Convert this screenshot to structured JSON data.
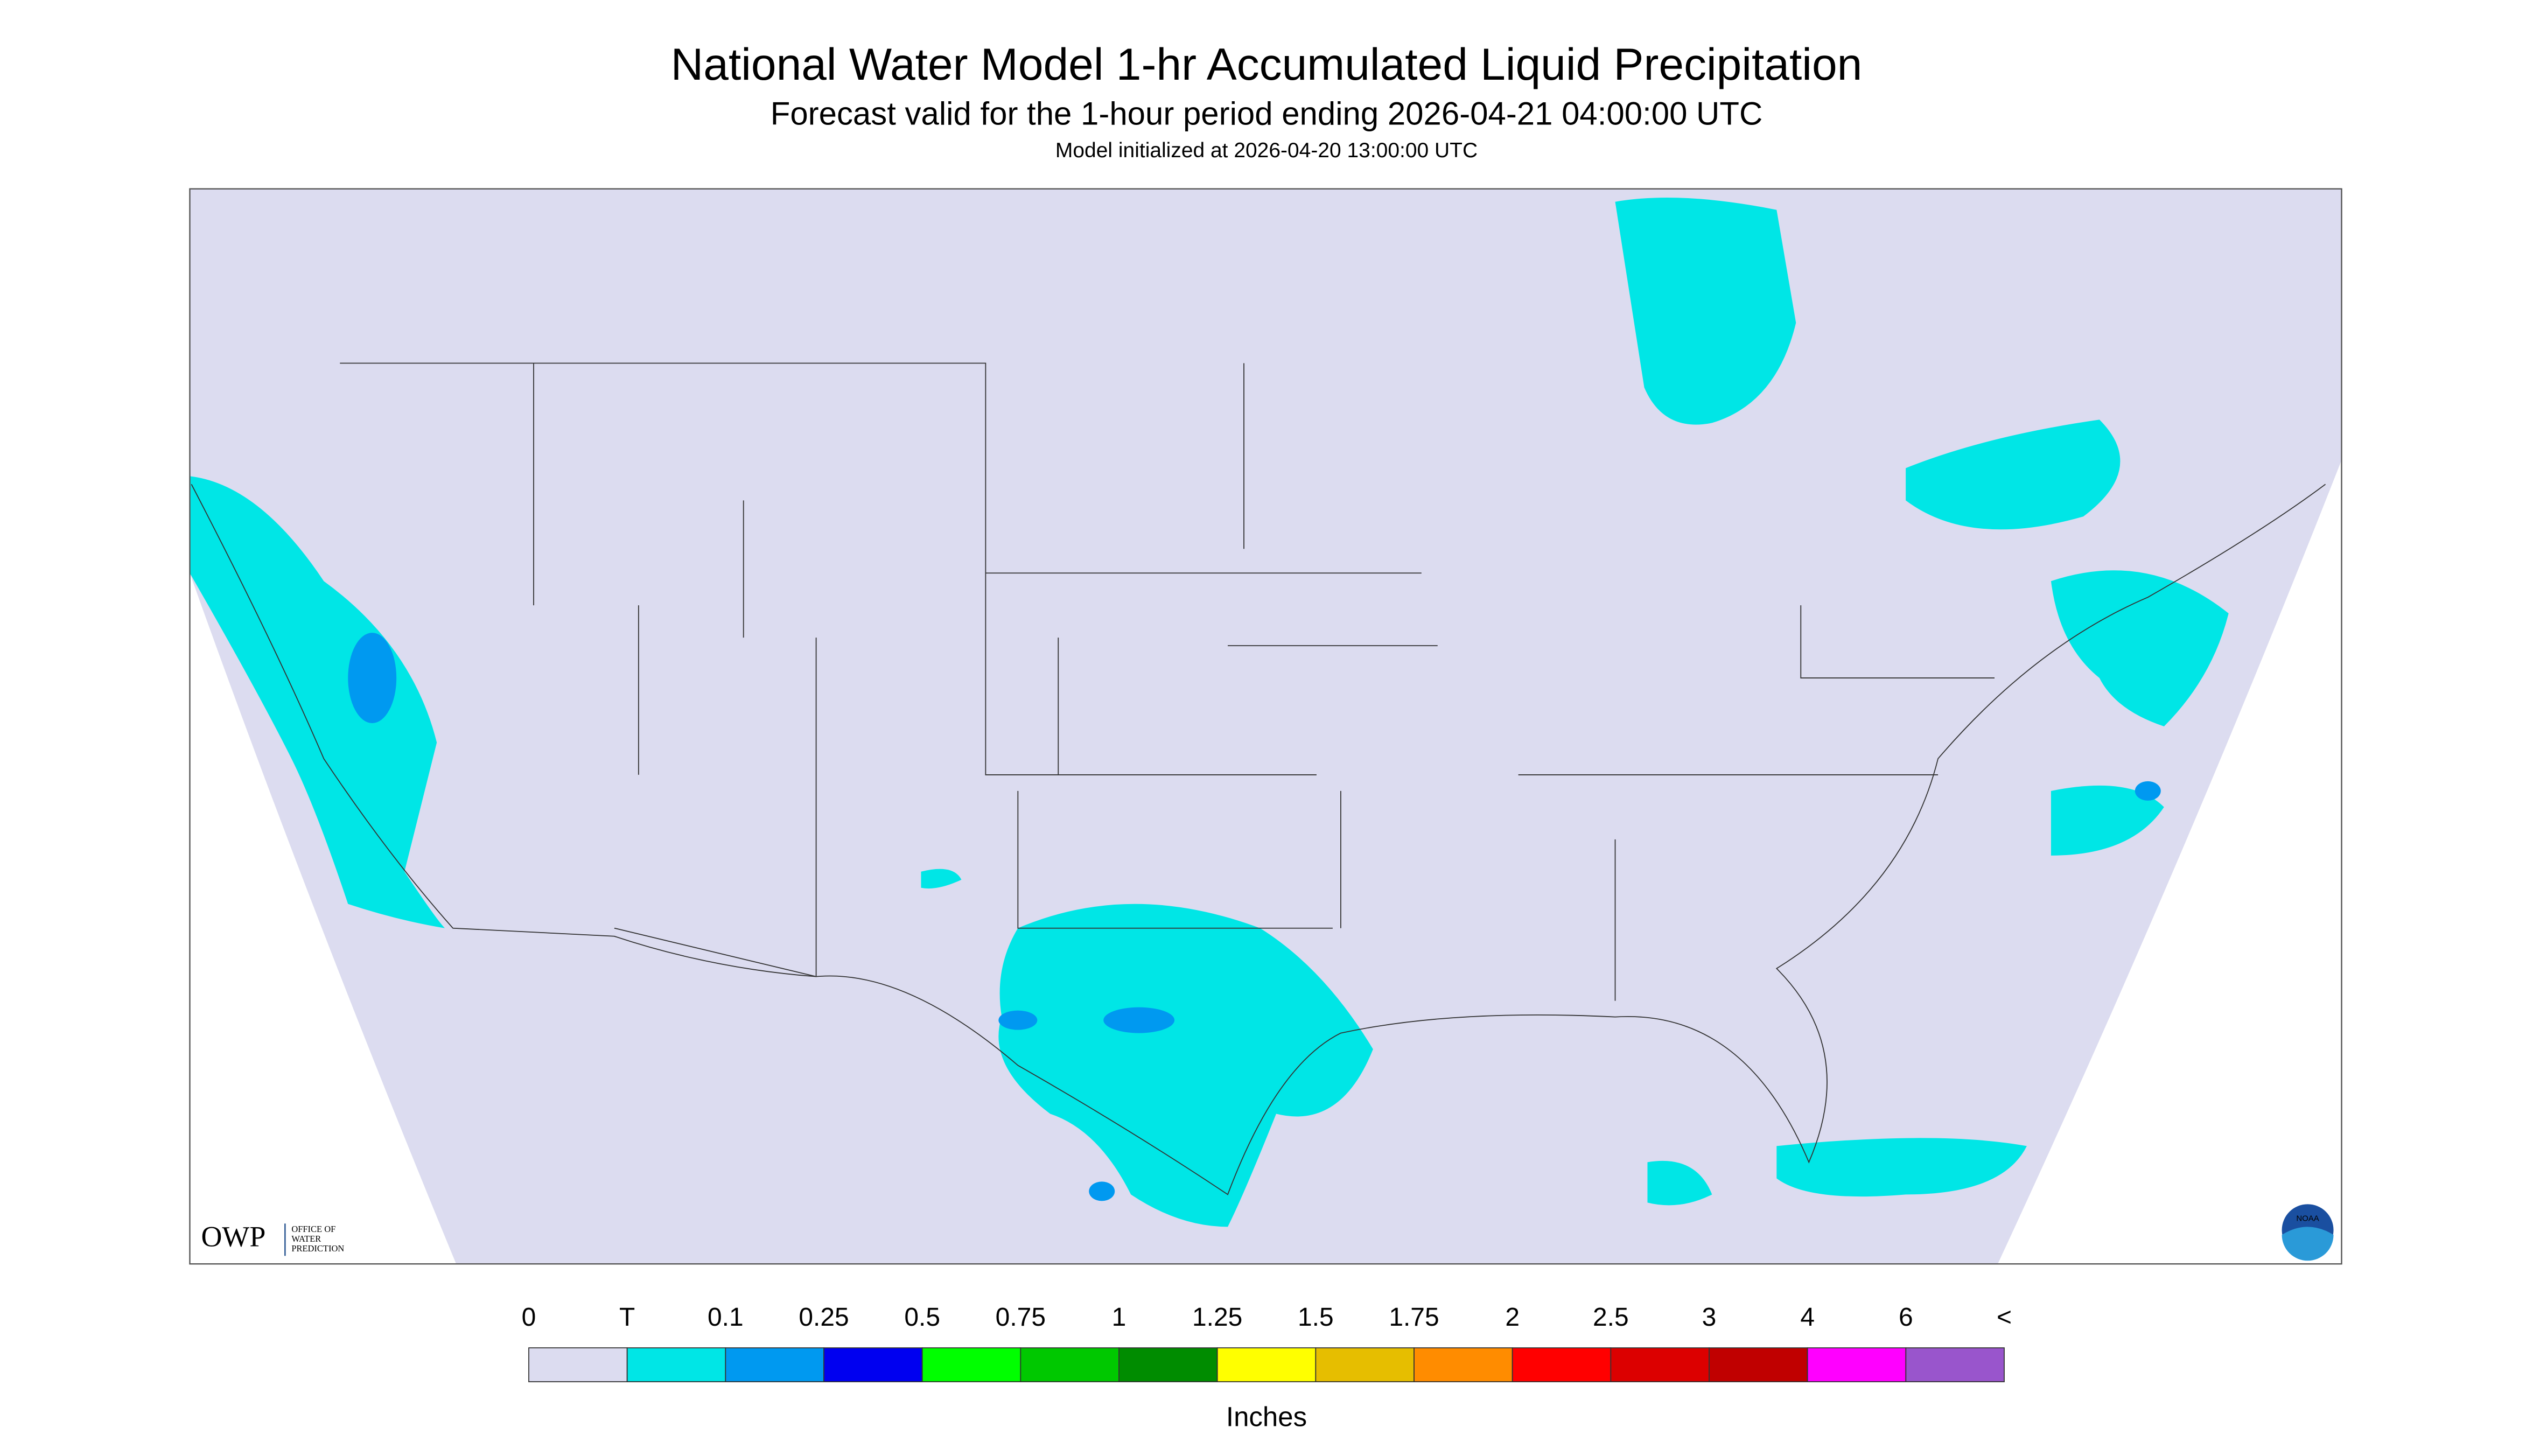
{
  "header": {
    "title": "National Water Model 1-hr Accumulated Liquid Precipitation",
    "subtitle": "Forecast valid for the 1-hour period ending 2026-04-21 04:00:00 UTC",
    "note": "Model initialized at 2026-04-20 13:00:00 UTC"
  },
  "logos": {
    "owp": "OWP",
    "owp_text": [
      "OFFICE OF",
      "WATER",
      "PREDICTION"
    ],
    "noaa": "NOAA"
  },
  "colorbar": {
    "labels": [
      "0",
      "T",
      "0.1",
      "0.25",
      "0.5",
      "0.75",
      "1",
      "1.25",
      "1.5",
      "1.75",
      "2",
      "2.5",
      "3",
      "4",
      "6",
      "<"
    ],
    "colors": [
      "#dcdcf0",
      "#00e6e6",
      "#0099f0",
      "#0000f0",
      "#00ff00",
      "#00c800",
      "#008c00",
      "#ffff00",
      "#e6be00",
      "#ff8c00",
      "#ff0000",
      "#dc0000",
      "#c00000",
      "#ff00ff",
      "#9955cc"
    ],
    "unit": "Inches"
  }
}
